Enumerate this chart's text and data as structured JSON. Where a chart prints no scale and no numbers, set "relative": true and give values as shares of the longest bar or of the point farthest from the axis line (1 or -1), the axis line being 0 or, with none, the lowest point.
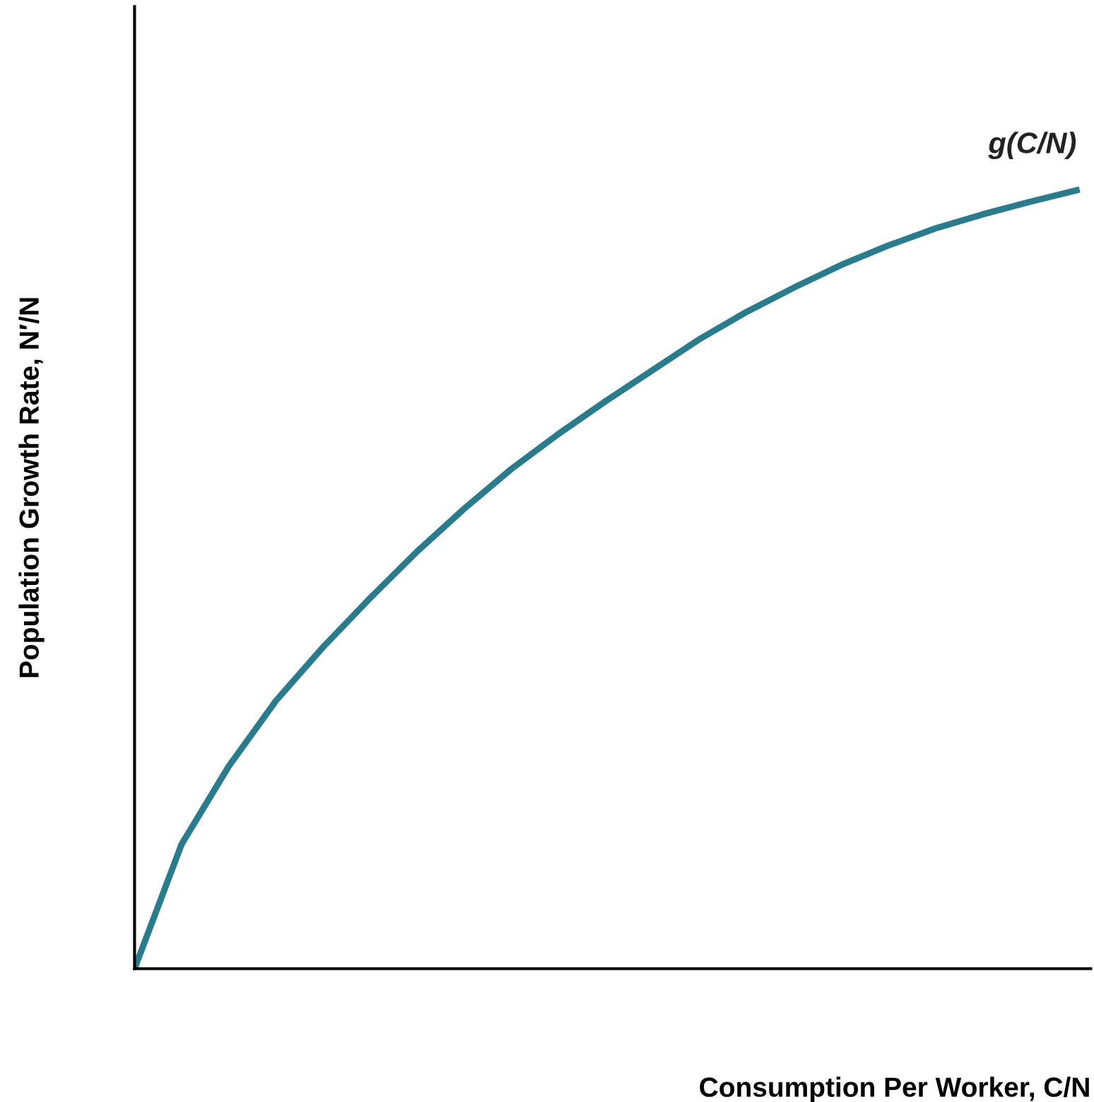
{
  "chart_data": {
    "type": "line",
    "relative": true,
    "xlabel": "Consumption Per Worker, C/N",
    "ylabel": "Population Growth Rate, N′/N",
    "categories": [
      null,
      null,
      null,
      null,
      null,
      null,
      null,
      null,
      null,
      null,
      null,
      null,
      null,
      null,
      null,
      null,
      null,
      null,
      null,
      null,
      null
    ],
    "series": [
      {
        "name": "g(C/N)",
        "color": "#2a7b8c",
        "values": [
          0,
          0.16,
          0.26,
          0.344,
          0.413,
          0.476,
          0.536,
          0.591,
          0.642,
          0.687,
          0.729,
          0.769,
          0.809,
          0.844,
          0.875,
          0.904,
          0.929,
          0.951,
          0.969,
          0.985,
          1
        ]
      }
    ],
    "legend": false,
    "marker": "none",
    "line_style": "solid"
  }
}
